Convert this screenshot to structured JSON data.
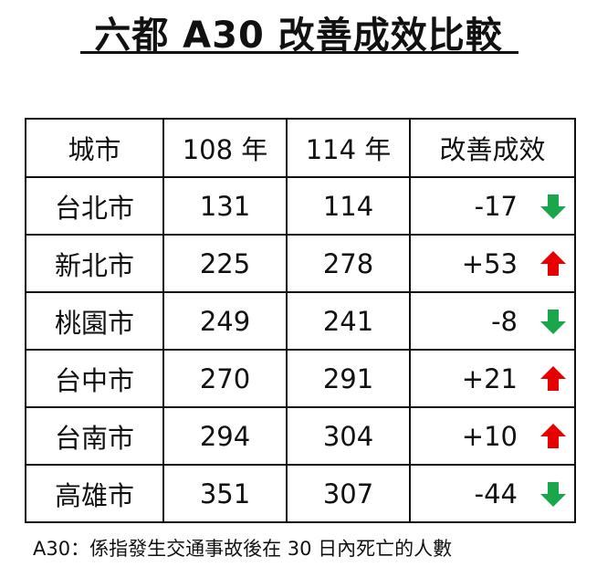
{
  "title": "六都 A30 改善成效比較",
  "table": {
    "headers": [
      "城市",
      "108 年",
      "114 年",
      "改善成效"
    ],
    "rows": [
      {
        "city": "台北市",
        "y108": "131",
        "y114": "114",
        "change": "-17",
        "trend": "down"
      },
      {
        "city": "新北市",
        "y108": "225",
        "y114": "278",
        "change": "+53",
        "trend": "up"
      },
      {
        "city": "桃園市",
        "y108": "249",
        "y114": "241",
        "change": "-8",
        "trend": "down"
      },
      {
        "city": "台中市",
        "y108": "270",
        "y114": "291",
        "change": "+21",
        "trend": "up"
      },
      {
        "city": "台南市",
        "y108": "294",
        "y114": "304",
        "change": "+10",
        "trend": "up"
      },
      {
        "city": "高雄市",
        "y108": "351",
        "y114": "307",
        "change": "-44",
        "trend": "down"
      }
    ]
  },
  "colors": {
    "down": "#1aa64a",
    "up": "#e60000"
  },
  "footnote": "A30：係指發生交通事故後在 30 日內死亡的人數"
}
